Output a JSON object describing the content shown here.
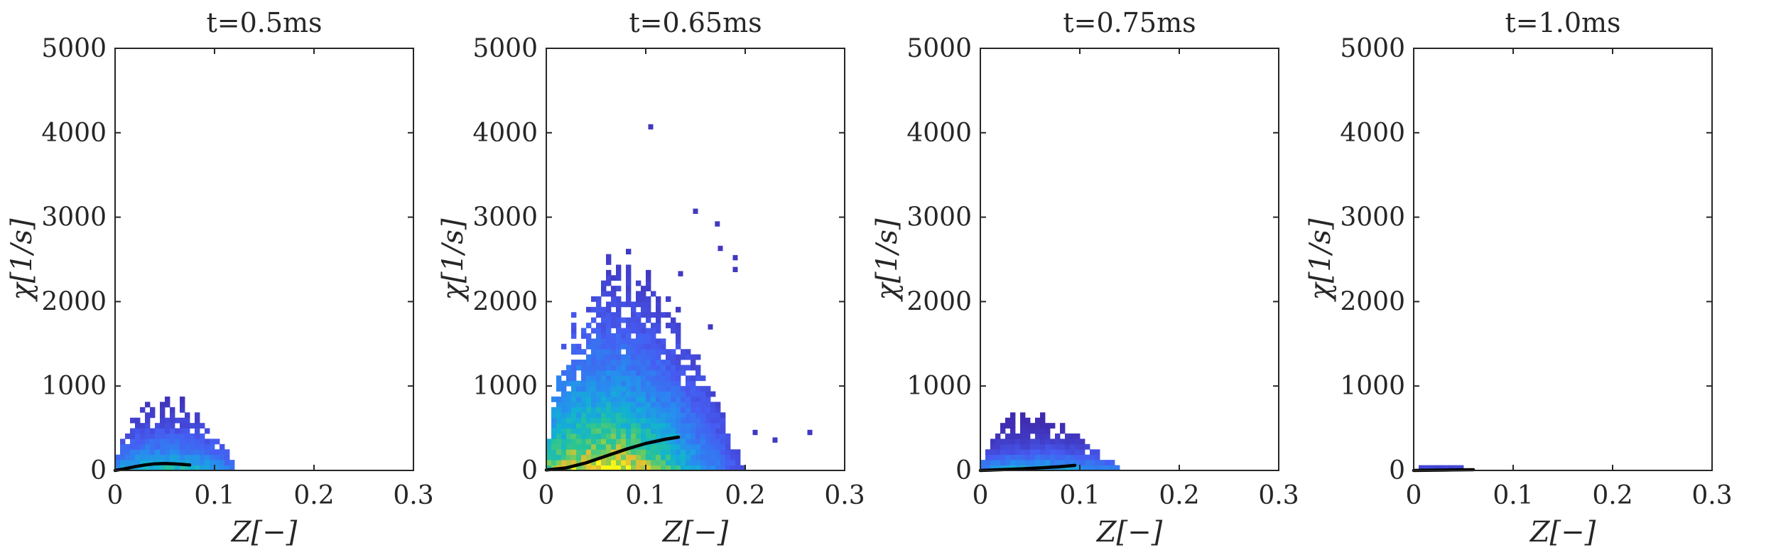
{
  "figure": {
    "x_label": "Z[−]",
    "y_label": "χ[1/s]"
  },
  "chart_data": [
    {
      "type": "heatmap",
      "title": "t=0.5ms",
      "xlabel": "Z[−]",
      "ylabel": "χ[1/s]",
      "xlim": [
        0,
        0.3
      ],
      "ylim": [
        0,
        5000
      ],
      "xticks": [
        "0",
        "0.1",
        "0.2",
        "0.3"
      ],
      "yticks": [
        "0",
        "1000",
        "2000",
        "3000",
        "4000",
        "5000"
      ],
      "grid": false,
      "density": {
        "z_peak": 0.05,
        "chi_scale": 330,
        "z_max": 0.125,
        "chi_max": 820,
        "intensity": 0.55
      },
      "mean_curve": {
        "x": [
          0.0,
          0.01,
          0.02,
          0.03,
          0.04,
          0.05,
          0.06,
          0.07,
          0.075
        ],
        "y": [
          0,
          20,
          45,
          65,
          78,
          82,
          78,
          70,
          65
        ]
      }
    },
    {
      "type": "heatmap",
      "title": "t=0.65ms",
      "xlabel": "Z[−]",
      "ylabel": "χ[1/s]",
      "xlim": [
        0,
        0.3
      ],
      "ylim": [
        0,
        5000
      ],
      "xticks": [
        "0",
        "0.1",
        "0.2",
        "0.3"
      ],
      "yticks": [
        "0",
        "1000",
        "2000",
        "3000",
        "4000",
        "5000"
      ],
      "grid": false,
      "density": {
        "z_peak": 0.06,
        "chi_scale": 900,
        "z_max": 0.2,
        "chi_max": 2300,
        "intensity": 1.0
      },
      "outliers": [
        [
          0.105,
          4070
        ],
        [
          0.15,
          3070
        ],
        [
          0.172,
          2920
        ],
        [
          0.175,
          2630
        ],
        [
          0.19,
          2520
        ],
        [
          0.19,
          2380
        ],
        [
          0.135,
          2330
        ],
        [
          0.165,
          1700
        ],
        [
          0.21,
          450
        ],
        [
          0.265,
          450
        ],
        [
          0.23,
          360
        ]
      ],
      "mean_curve": {
        "x": [
          0.0,
          0.02,
          0.04,
          0.06,
          0.08,
          0.1,
          0.12,
          0.133
        ],
        "y": [
          5,
          30,
          90,
          170,
          250,
          320,
          370,
          395
        ]
      }
    },
    {
      "type": "heatmap",
      "title": "t=0.75ms",
      "xlabel": "Z[−]",
      "ylabel": "χ[1/s]",
      "xlim": [
        0,
        0.3
      ],
      "ylim": [
        0,
        5000
      ],
      "xticks": [
        "0",
        "0.1",
        "0.2",
        "0.3"
      ],
      "yticks": [
        "0",
        "1000",
        "2000",
        "3000",
        "4000",
        "5000"
      ],
      "grid": false,
      "density": {
        "z_peak": 0.06,
        "chi_scale": 180,
        "z_max": 0.14,
        "chi_max": 650,
        "intensity": 0.5
      },
      "mean_curve": {
        "x": [
          0.0,
          0.02,
          0.04,
          0.06,
          0.08,
          0.095
        ],
        "y": [
          0,
          8,
          18,
          30,
          45,
          60
        ]
      }
    },
    {
      "type": "heatmap",
      "title": "t=1.0ms",
      "xlabel": "Z[−]",
      "ylabel": "χ[1/s]",
      "xlim": [
        0,
        0.3
      ],
      "ylim": [
        0,
        5000
      ],
      "xticks": [
        "0",
        "0.1",
        "0.2",
        "0.3"
      ],
      "yticks": [
        "0",
        "1000",
        "2000",
        "3000",
        "4000",
        "5000"
      ],
      "grid": false,
      "density": {
        "z_peak": 0.035,
        "chi_scale": 25,
        "z_max": 0.065,
        "chi_max": 80,
        "intensity": 0.35
      },
      "mean_curve": {
        "x": [
          0.0,
          0.02,
          0.04,
          0.06
        ],
        "y": [
          0,
          3,
          6,
          8
        ]
      }
    }
  ]
}
